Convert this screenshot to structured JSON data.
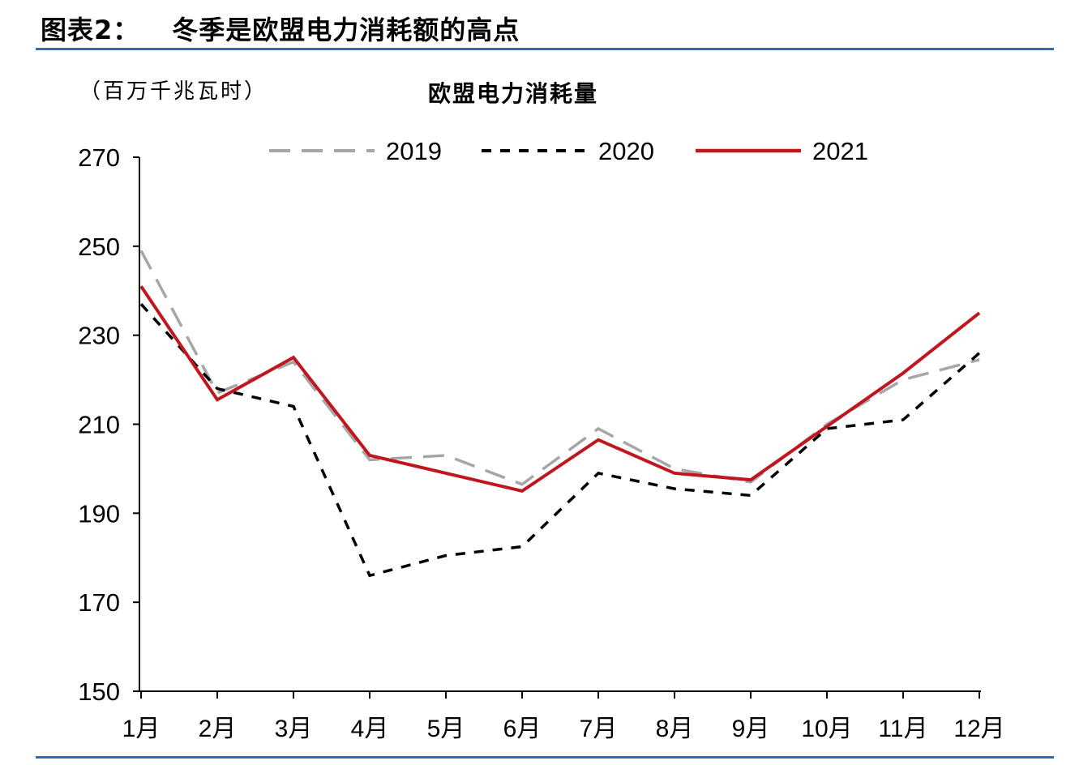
{
  "figure": {
    "label": "图表2：",
    "title": "冬季是欧盟电力消耗额的高点"
  },
  "chart_data": {
    "type": "line",
    "title": "欧盟电力消耗量",
    "ylabel": "（百万千兆瓦时）",
    "xlabel": "",
    "categories": [
      "1月",
      "2月",
      "3月",
      "4月",
      "5月",
      "6月",
      "7月",
      "8月",
      "9月",
      "10月",
      "11月",
      "12月"
    ],
    "ylim": [
      150,
      270
    ],
    "yticks": [
      150,
      170,
      190,
      210,
      230,
      250,
      270
    ],
    "grid": false,
    "legend_position": "top",
    "series": [
      {
        "name": "2019",
        "color": "#a6a6a6",
        "style": "long-dash",
        "values": [
          249,
          217,
          224,
          202,
          203,
          196.5,
          209,
          200,
          197,
          210,
          220,
          224.5
        ]
      },
      {
        "name": "2020",
        "color": "#000000",
        "style": "short-dash",
        "values": [
          237,
          218,
          214,
          176,
          180.5,
          182.5,
          199,
          195.5,
          194,
          209,
          211,
          226
        ]
      },
      {
        "name": "2021",
        "color": "#c0171e",
        "style": "solid",
        "values": [
          241,
          215.5,
          225,
          203,
          199,
          195,
          206.5,
          199,
          197.5,
          209.5,
          221.5,
          235
        ]
      }
    ]
  }
}
